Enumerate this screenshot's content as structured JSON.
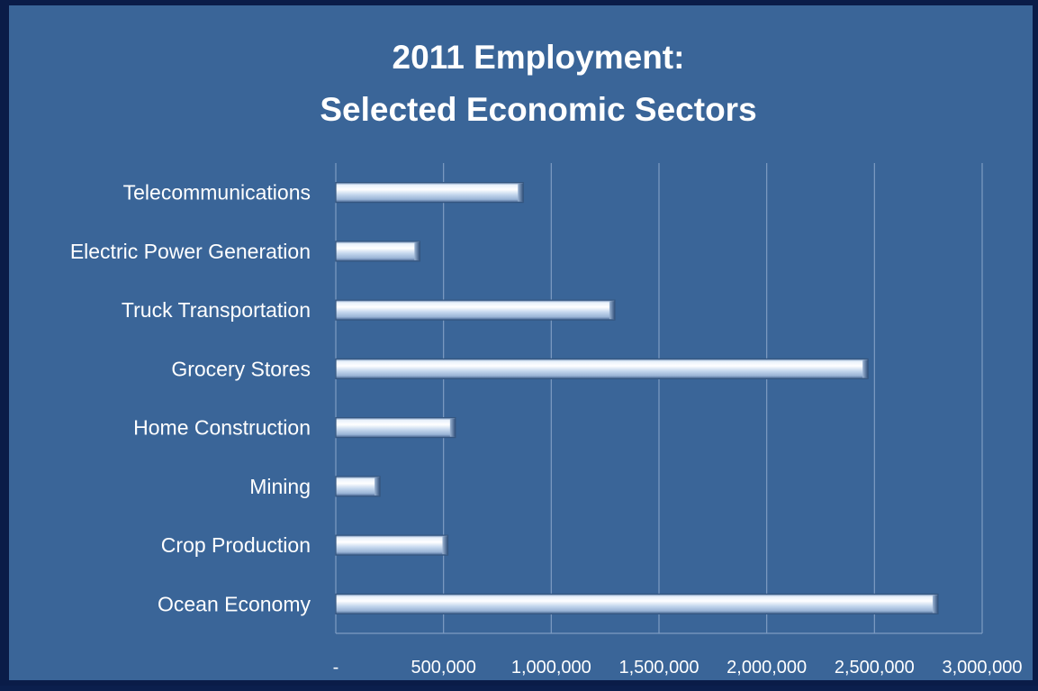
{
  "chart_data": {
    "type": "bar",
    "orientation": "horizontal",
    "title": [
      "2011 Employment:",
      "Selected Economic Sectors"
    ],
    "categories": [
      "Telecommunications",
      "Electric Power Generation",
      "Truck Transportation",
      "Grocery Stores",
      "Home Construction",
      "Mining",
      "Crop Production",
      "Ocean Economy"
    ],
    "values": [
      870000,
      390000,
      1295000,
      2470000,
      555000,
      205000,
      520000,
      2795000
    ],
    "xlim": [
      0,
      3000000
    ],
    "xticks": [
      "-",
      "500,000",
      "1,000,000",
      "1,500,000",
      "2,000,000",
      "2,500,000",
      "3,000,000"
    ],
    "xtick_values": [
      0,
      500000,
      1000000,
      1500000,
      2000000,
      2500000,
      3000000
    ],
    "grid": "vertical",
    "legend": "none",
    "colors": {
      "background": "#3a6598",
      "frame": "#0a1c48",
      "bar_light": "#ffffff",
      "bar_mid": "#b9cee8",
      "bar_dark": "#4e6f9c",
      "grid": "#7e9cc2",
      "text": "#ffffff"
    }
  }
}
